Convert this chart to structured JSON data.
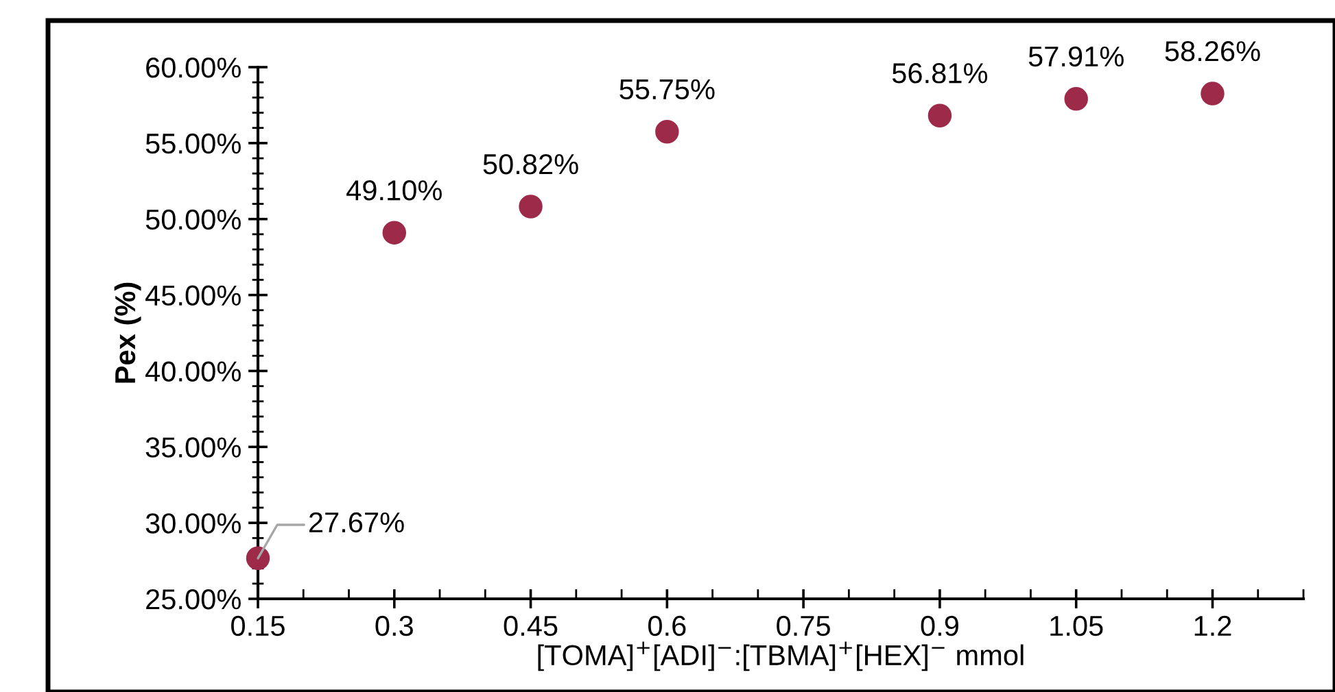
{
  "chart_data": {
    "type": "scatter",
    "xlabel": "[TOMA]$^{+}$[ADI]$^{−}$:[TBMA]$^{+}$[HEX]$^{−}$ mmol",
    "ylabel": "Pex (%)",
    "x": [
      0.15,
      0.3,
      0.45,
      0.6,
      0.9,
      1.05,
      1.2
    ],
    "series": [
      {
        "color": "#9e2a4a",
        "values": [
          27.67,
          49.1,
          50.82,
          55.75,
          56.81,
          57.91,
          58.26
        ],
        "value_labels": [
          "27.67%",
          "49.10%",
          "50.82%",
          "55.75%",
          "56.81%",
          "57.91%",
          "58.26%"
        ]
      }
    ],
    "marker": "circle",
    "grid": false,
    "xlim": [
      0.15,
      1.3
    ],
    "xticks": [
      0.15,
      0.3,
      0.45,
      0.6,
      0.75,
      0.9,
      1.05,
      1.2
    ],
    "ylim": [
      25,
      60
    ],
    "yticks": [
      {
        "value": 25,
        "label": "25.00%"
      },
      {
        "value": 30,
        "label": "30.00%"
      },
      {
        "value": 35,
        "label": "35.00%"
      },
      {
        "value": 40,
        "label": "40.00%"
      },
      {
        "value": 45,
        "label": "45.00%"
      },
      {
        "value": 50,
        "label": "50.00%"
      },
      {
        "value": 55,
        "label": "55.00%"
      },
      {
        "value": 60,
        "label": "60.00%"
      }
    ]
  }
}
